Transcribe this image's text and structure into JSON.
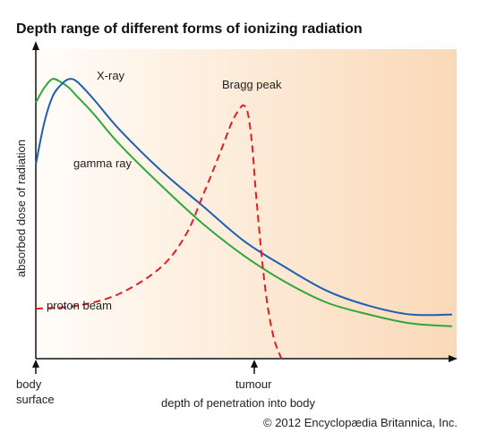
{
  "chart_data": {
    "type": "line",
    "title": "Depth range of different forms of ionizing radiation",
    "xlabel": "depth of penetration into body",
    "ylabel": "absorbed dose of radiation",
    "xlim": [
      0,
      100
    ],
    "ylim": [
      0,
      100
    ],
    "x_markers": [
      {
        "label": "body surface",
        "x": 0
      },
      {
        "label": "tumour",
        "x": 51
      }
    ],
    "series": [
      {
        "name": "X-ray",
        "color": "#1f5fb0",
        "style": "solid",
        "x": [
          0,
          2,
          4,
          6,
          8,
          10,
          14,
          20,
          30,
          40,
          50,
          60,
          70,
          80,
          90,
          100
        ],
        "y": [
          66,
          80,
          89,
          93,
          95,
          94,
          88,
          78,
          64,
          52,
          40,
          31,
          23,
          18,
          15,
          15
        ]
      },
      {
        "name": "gamma ray",
        "color": "#2ea83a",
        "style": "solid",
        "x": [
          0,
          2,
          4,
          6,
          8,
          10,
          14,
          20,
          30,
          40,
          50,
          60,
          70,
          80,
          90,
          100
        ],
        "y": [
          87,
          92,
          95,
          94,
          92,
          89,
          83,
          73,
          59,
          46,
          35,
          26,
          19,
          15,
          12,
          11
        ]
      },
      {
        "name": "proton beam",
        "color": "#e02020",
        "style": "dashed",
        "x": [
          0,
          10,
          20,
          30,
          36,
          40,
          44,
          47,
          49,
          50,
          51,
          52,
          53,
          55,
          57,
          59
        ],
        "y": [
          17,
          18,
          22,
          31,
          42,
          55,
          69,
          80,
          85,
          86,
          83,
          72,
          54,
          25,
          8,
          0
        ]
      }
    ],
    "annotations": [
      {
        "text": "X-ray"
      },
      {
        "text": "gamma ray"
      },
      {
        "text": "Bragg peak"
      },
      {
        "text": "proton beam"
      }
    ],
    "credit": "© 2012 Encyclopædia Britannica, Inc."
  }
}
